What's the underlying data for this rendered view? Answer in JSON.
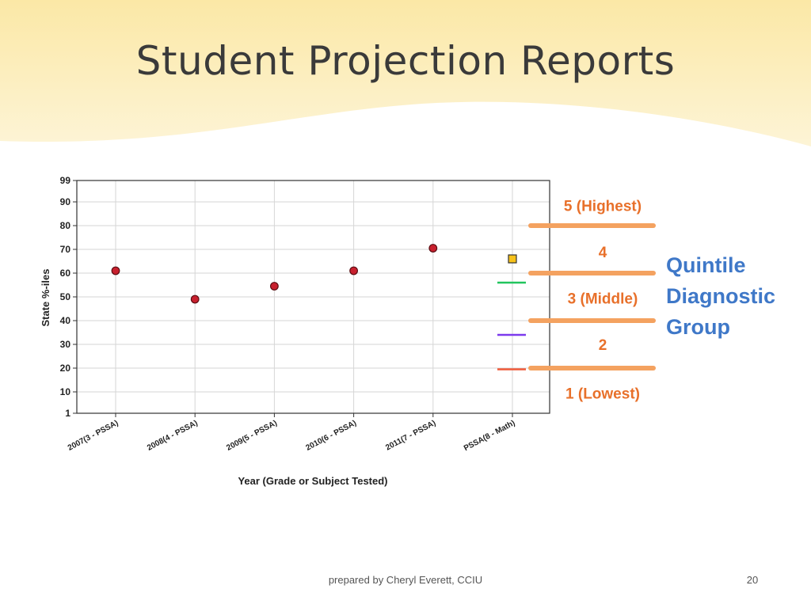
{
  "slide": {
    "title": "Student Projection Reports",
    "footer": "prepared by Cheryl Everett, CCIU",
    "page_number": "20"
  },
  "colors": {
    "banner_top": "#fbe8a6",
    "banner_bottom": "#fdf4d6",
    "point_fill": "#c8202e",
    "projection_fill": "#f7c21a",
    "quintile_text": "#e8702a",
    "quintile_divider": "#f4a260",
    "diagnostic_label": "#3f78c8",
    "marker_green": "#22c55e",
    "marker_purple": "#7c3aed",
    "marker_red": "#ef5a3a"
  },
  "chart_data": {
    "type": "scatter",
    "title": "",
    "xlabel": "Year (Grade or Subject Tested)",
    "ylabel": "State %-iles",
    "yticks": [
      1,
      10,
      20,
      30,
      40,
      50,
      60,
      70,
      80,
      90,
      99
    ],
    "ylim": [
      1,
      99
    ],
    "grid": true,
    "categories": [
      "2007(3 - PSSA)",
      "2008(4 - PSSA)",
      "2009(5 - PSSA)",
      "2010(6 - PSSA)",
      "2011(7 - PSSA)",
      "PSSA(8 - Math)"
    ],
    "series": [
      {
        "kind": "observed",
        "marker": "circle",
        "values": [
          61,
          49,
          54.5,
          61,
          70.5,
          null
        ]
      },
      {
        "kind": "projection",
        "marker": "square",
        "values": [
          null,
          null,
          null,
          null,
          null,
          66
        ]
      }
    ],
    "reference_marks": [
      {
        "category": "PSSA(8 - Math)",
        "value": 56,
        "color": "#22c55e"
      },
      {
        "category": "PSSA(8 - Math)",
        "value": 34,
        "color": "#7c3aed"
      },
      {
        "category": "PSSA(8 - Math)",
        "value": 19.5,
        "color": "#ef5a3a"
      }
    ],
    "quintile_groups": [
      {
        "label": "5 (Highest)",
        "center": 88.5
      },
      {
        "label": "4",
        "center": 69
      },
      {
        "label": "3 (Middle)",
        "center": 49.5
      },
      {
        "label": "2",
        "center": 30
      },
      {
        "label": "1 (Lowest)",
        "center": 9.5
      }
    ],
    "quintile_boundaries": [
      80,
      60,
      40,
      20
    ],
    "side_label": [
      "Quintile",
      "Diagnostic",
      "Group"
    ]
  }
}
